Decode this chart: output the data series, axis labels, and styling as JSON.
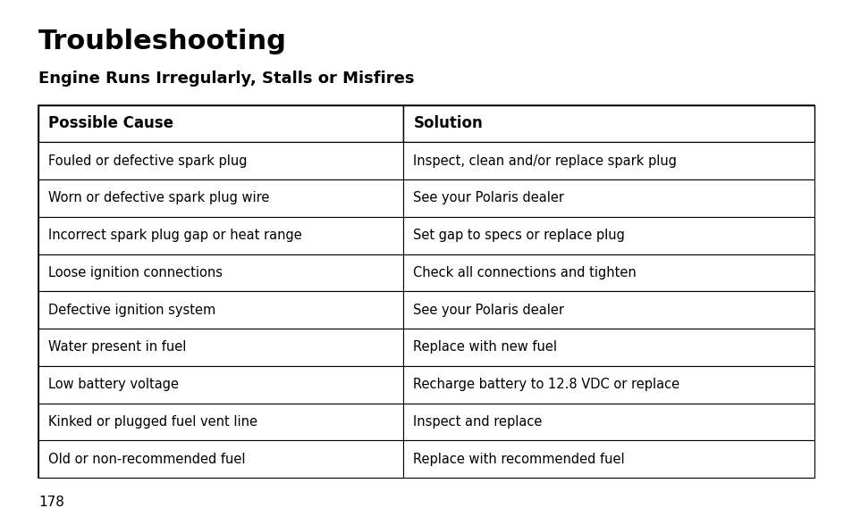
{
  "title": "Troubleshooting",
  "subtitle": "Engine Runs Irregularly, Stalls or Misfires",
  "col_headers": [
    "Possible Cause",
    "Solution"
  ],
  "rows": [
    [
      "Fouled or defective spark plug",
      "Inspect, clean and/or replace spark plug"
    ],
    [
      "Worn or defective spark plug wire",
      "See your Polaris dealer"
    ],
    [
      "Incorrect spark plug gap or heat range",
      "Set gap to specs or replace plug"
    ],
    [
      "Loose ignition connections",
      "Check all connections and tighten"
    ],
    [
      "Defective ignition system",
      "See your Polaris dealer"
    ],
    [
      "Water present in fuel",
      "Replace with new fuel"
    ],
    [
      "Low battery voltage",
      "Recharge battery to 12.8 VDC or replace"
    ],
    [
      "Kinked or plugged fuel vent line",
      "Inspect and replace"
    ],
    [
      "Old or non-recommended fuel",
      "Replace with recommended fuel"
    ]
  ],
  "bg_color": "#ffffff",
  "text_color": "#000000",
  "table_border_color": "#000000",
  "page_number": "178",
  "col_split": 0.47,
  "title_fontsize": 22,
  "subtitle_fontsize": 13,
  "header_fontsize": 12,
  "body_fontsize": 10.5,
  "page_num_fontsize": 11
}
